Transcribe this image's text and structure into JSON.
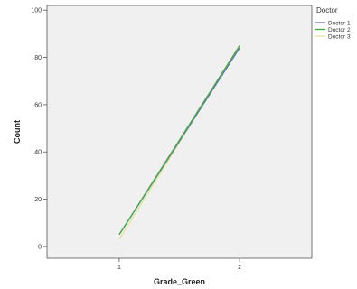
{
  "chart_data": {
    "type": "line",
    "xlabel": "Grade_Green",
    "ylabel": "Count",
    "x": [
      1,
      2
    ],
    "x_ticks": [
      "1",
      "2"
    ],
    "y_ticks": [
      0,
      20,
      40,
      60,
      80,
      100
    ],
    "ylim": [
      -5,
      102
    ],
    "xlim": [
      0.4,
      2.6
    ],
    "legend_title": "Doctor",
    "legend_position": "top-right-outside",
    "series": [
      {
        "name": "Doctor 1",
        "color": "#6a6fb0",
        "values": [
          5,
          84
        ]
      },
      {
        "name": "Doctor 2",
        "color": "#3fae3f",
        "values": [
          5,
          85
        ]
      },
      {
        "name": "Doctor 3",
        "color": "#e6e0a0",
        "values": [
          3,
          85
        ]
      }
    ],
    "plot_background": "#f0f0f0",
    "grid": false
  }
}
